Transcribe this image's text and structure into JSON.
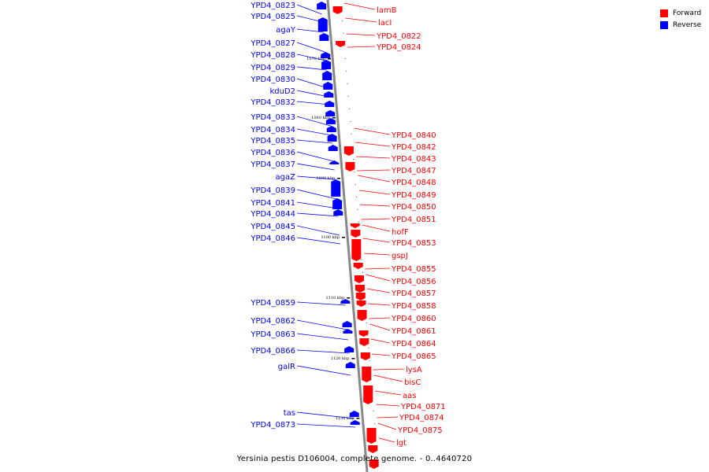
{
  "colors": {
    "forward": "#ff0000",
    "reverse": "#0000ff",
    "backbone": "#888888"
  },
  "legend": {
    "forward_label": "Forward",
    "reverse_label": "Reverse"
  },
  "caption": "Yersinia pestis D106004, complete genome. - 0..4640720",
  "scale_ticks": [
    "1070 kbp",
    "1080 kbp",
    "1090 kbp",
    "1100 kbp",
    "1110 kbp",
    "1120 kbp",
    "1130 kbp"
  ],
  "reverse_labels": [
    "YPD4_0823",
    "YPD4_0825",
    "agaY",
    "YPD4_0827",
    "YPD4_0828",
    "YPD4_0829",
    "YPD4_0830",
    "kduD2",
    "YPD4_0832",
    "YPD4_0833",
    "YPD4_0834",
    "YPD4_0835",
    "YPD4_0836",
    "YPD4_0837",
    "agaZ",
    "YPD4_0839",
    "YPD4_0841",
    "YPD4_0844",
    "YPD4_0845",
    "YPD4_0846",
    "YPD4_0859",
    "YPD4_0862",
    "YPD4_0863",
    "YPD4_0866",
    "galR",
    "tas",
    "YPD4_0873"
  ],
  "forward_labels": [
    "lamB",
    "lacI",
    "YPD4_0822",
    "YPD4_0824",
    "YPD4_0840",
    "YPD4_0842",
    "YPD4_0843",
    "YPD4_0847",
    "YPD4_0848",
    "YPD4_0849",
    "YPD4_0850",
    "YPD4_0851",
    "hofF",
    "YPD4_0853",
    "gspJ",
    "YPD4_0855",
    "YPD4_0856",
    "YPD4_0857",
    "YPD4_0858",
    "YPD4_0860",
    "YPD4_0861",
    "YPD4_0864",
    "YPD4_0865",
    "lysA",
    "bisC",
    "aas",
    "YPD4_0871",
    "YPD4_0874",
    "YPD4_0875",
    "lgt"
  ]
}
